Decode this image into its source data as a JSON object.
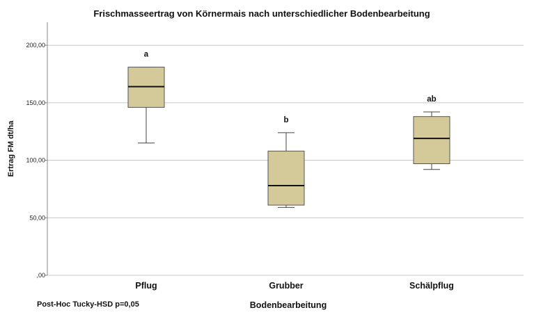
{
  "chart_data": {
    "type": "boxplot",
    "title": "Frischmasseertrag von Körnermais nach unterschiedlicher Bodenbearbeitung",
    "xlabel": "Bodenbearbeitung",
    "ylabel": "Ertrag FM dt/ha",
    "ylim": [
      0,
      220
    ],
    "yticks": [
      0,
      50,
      100,
      150,
      200
    ],
    "ytick_labels": [
      ",00",
      "50,00",
      "100,00",
      "150,00",
      "200,00"
    ],
    "grid": true,
    "box_color": "#d4c998",
    "categories": [
      "Pflug",
      "Grubber",
      "Schälpflug"
    ],
    "boxes": [
      {
        "category": "Pflug",
        "min": 115,
        "q1": 146,
        "median": 164,
        "q3": 181,
        "max": 181,
        "annotation": "a"
      },
      {
        "category": "Grubber",
        "min": 59,
        "q1": 61,
        "median": 78,
        "q3": 108,
        "max": 124,
        "annotation": "b"
      },
      {
        "category": "Schälpflug",
        "min": 92,
        "q1": 97,
        "median": 119,
        "q3": 138,
        "max": 142,
        "annotation": "ab"
      }
    ],
    "note": "Post-Hoc Tucky-HSD p=0,05"
  }
}
